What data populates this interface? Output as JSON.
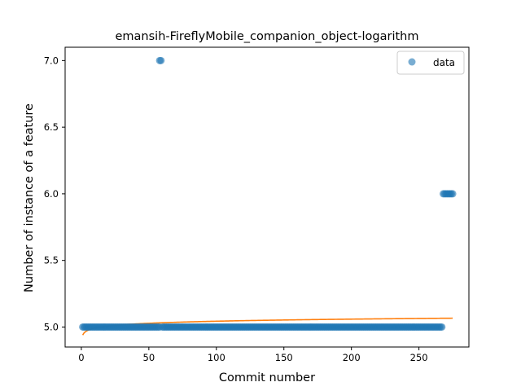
{
  "chart_data": {
    "type": "scatter",
    "title": "emansih-FireflyMobile_companion_object-logarithm",
    "xlabel": "Commit number",
    "ylabel": "Number of instance of a feature",
    "xlim": [
      -12,
      287
    ],
    "ylim": [
      4.85,
      7.1
    ],
    "xticks": [
      0,
      50,
      100,
      150,
      200,
      250
    ],
    "yticks": [
      5.0,
      5.5,
      6.0,
      6.5,
      7.0
    ],
    "xtick_labels": [
      "0",
      "50",
      "100",
      "150",
      "200",
      "250"
    ],
    "ytick_labels": [
      "5.0",
      "5.5",
      "6.0",
      "6.5",
      "7.0"
    ],
    "grid": false,
    "legend": {
      "placement": "top-right",
      "entries": [
        "data"
      ]
    },
    "series": [
      {
        "name": "data",
        "kind": "scatter",
        "color": "#1f77b4",
        "segments": [
          {
            "x_start": 1,
            "x_end": 58,
            "y": 5.0
          },
          {
            "x_start": 58,
            "x_end": 59,
            "y": 7.0
          },
          {
            "x_start": 60,
            "x_end": 267,
            "y": 5.0
          },
          {
            "x_start": 268,
            "x_end": 275,
            "y": 6.0
          }
        ]
      },
      {
        "kind": "line",
        "color": "#ff7f0e",
        "fit": {
          "model": "logarithmic",
          "a": 4.94,
          "b": 0.0225,
          "x_start": 1,
          "x_end": 275
        }
      }
    ]
  }
}
